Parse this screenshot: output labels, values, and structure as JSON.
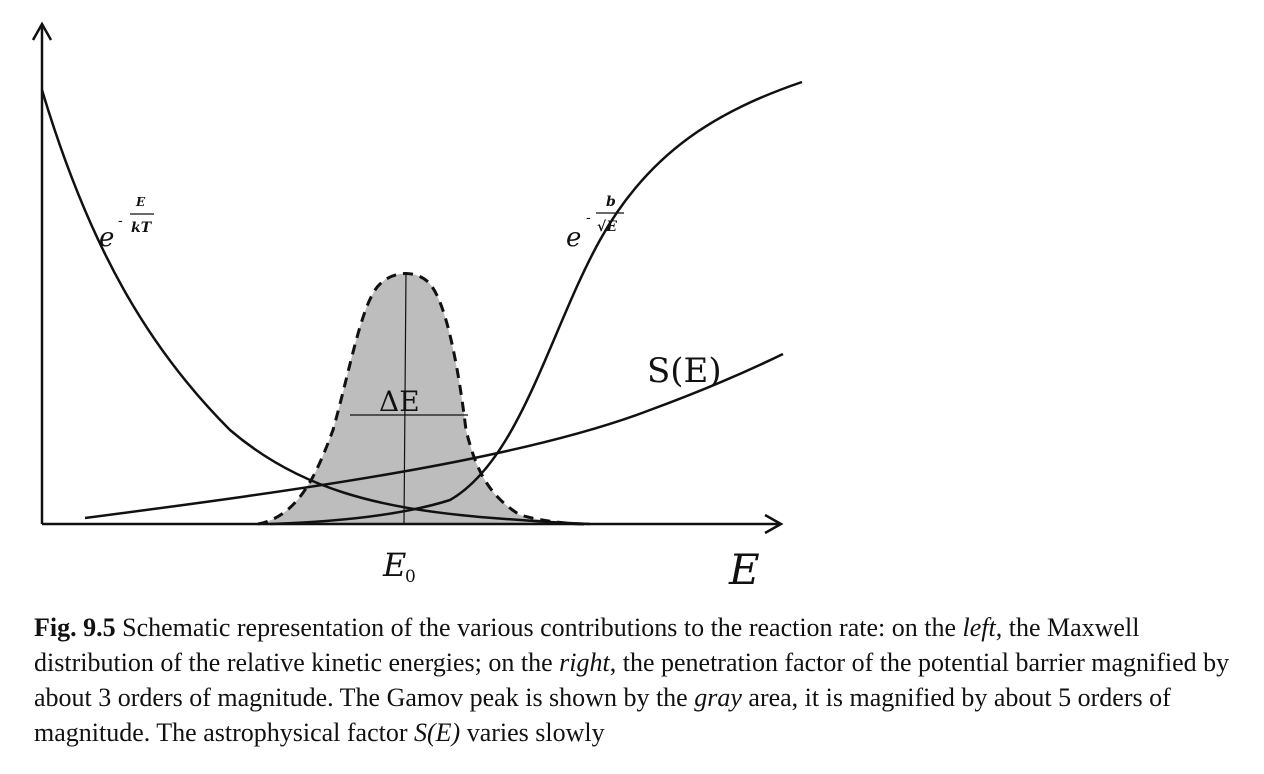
{
  "labels": {
    "maxwell_base": "e",
    "maxwell_num": "E",
    "maxwell_den": "kT",
    "penetration_base": "e",
    "penetration_num": "b",
    "penetration_den": "√E",
    "minus": "-",
    "s_factor": "S(E)",
    "delta_e": "ΔE",
    "peak_energy": "E",
    "peak_energy_sub": "0",
    "x_axis": "E"
  },
  "caption": {
    "fig_label": "Fig. 9.5",
    "t1": "  Schematic representation of the various contributions to the reaction rate: on the ",
    "left": "left",
    "t2": ", the Maxwell distribution of the relative kinetic energies; on the ",
    "right": "right",
    "t3": ", the penetration factor of the potential barrier magnified by about 3 orders of magnitude. The Gamov peak is shown by the ",
    "gray": "gray",
    "t4": " area, it is magnified by about 5 orders of magnitude. The astrophysical factor ",
    "sfactor": "S(E)",
    "t5": " varies slowly"
  },
  "colors": {
    "ink": "#111111",
    "peak_fill": "#bdbdbd",
    "background": "#ffffff"
  }
}
